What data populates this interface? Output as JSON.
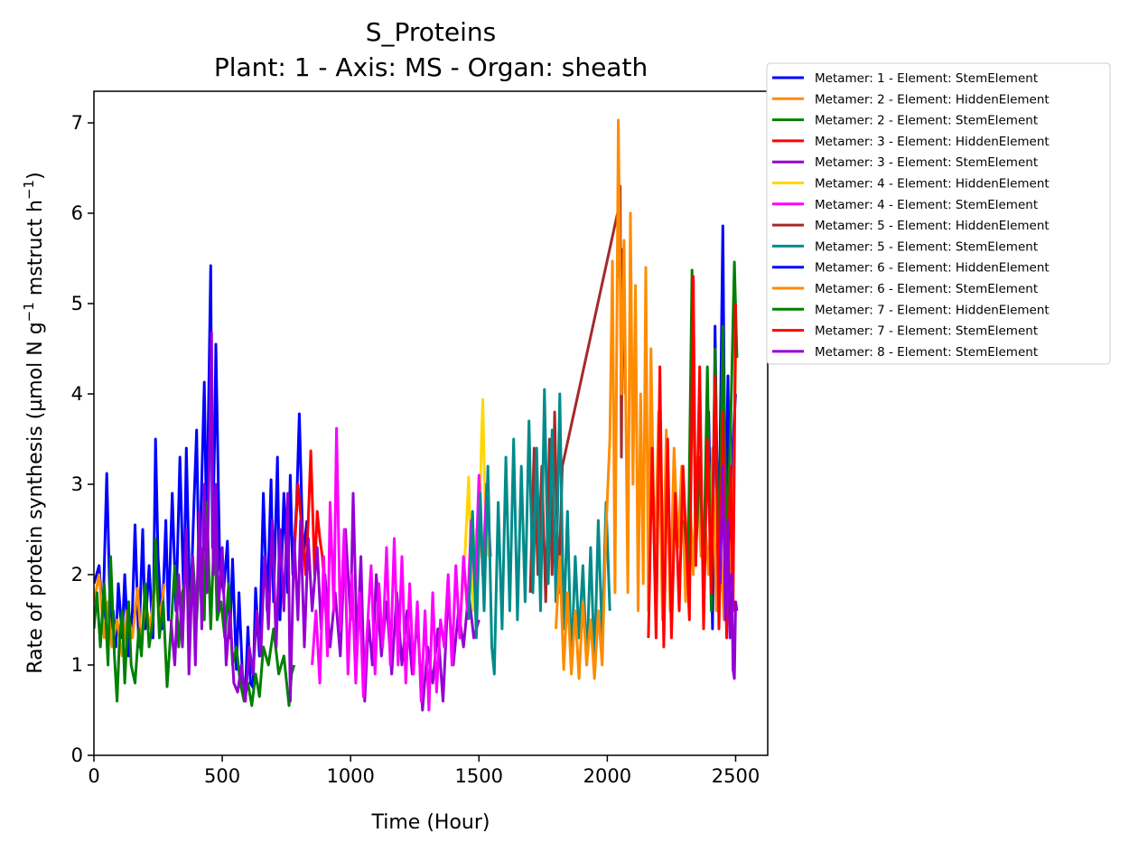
{
  "chart_data": {
    "type": "line",
    "title": "S_Proteins",
    "subtitle": "Plant: 1 - Axis: MS - Organ: sheath",
    "xlabel": "Time (Hour)",
    "ylabel_parts": [
      "Rate of protein synthesis (µmol N g",
      "−1",
      " mstruct h",
      "−1",
      ")"
    ],
    "xlim": [
      0,
      2625
    ],
    "ylim": [
      0,
      7.35
    ],
    "xticks": [
      0,
      500,
      1000,
      1500,
      2000,
      2500
    ],
    "yticks": [
      0,
      1,
      2,
      3,
      4,
      5,
      6,
      7
    ],
    "grid": false,
    "legend_position": "outside top-right",
    "series": [
      {
        "name": "Metamer: 1 - Element: StemElement",
        "color": "#0000ff",
        "x": [
          0,
          20,
          35,
          50,
          58,
          65,
          75,
          85,
          95,
          110,
          120,
          135,
          150,
          160,
          175,
          190,
          200,
          215,
          230,
          240,
          250,
          265,
          280,
          290,
          305,
          320,
          335,
          350,
          360,
          375,
          390,
          400,
          410,
          420,
          430,
          440,
          445,
          455,
          462,
          470,
          475,
          490,
          505,
          520,
          530,
          540,
          555,
          565,
          580,
          590,
          600,
          610,
          620,
          630,
          645,
          660,
          675,
          690,
          700,
          715,
          725,
          740,
          755,
          765,
          775,
          790,
          800,
          815,
          830
        ],
        "y": [
          1.9,
          2.1,
          1.5,
          3.12,
          2.2,
          1.4,
          1.6,
          1.2,
          1.9,
          1.3,
          2.0,
          1.1,
          1.6,
          2.55,
          1.2,
          2.5,
          1.4,
          2.1,
          1.3,
          3.5,
          2.2,
          1.4,
          2.6,
          1.5,
          2.9,
          1.6,
          3.3,
          1.7,
          3.4,
          1.5,
          2.8,
          3.6,
          1.9,
          3.05,
          4.13,
          2.3,
          3.6,
          5.42,
          2.3,
          3.5,
          4.55,
          2.1,
          1.8,
          2.37,
          1.3,
          2.17,
          0.95,
          1.8,
          0.8,
          0.72,
          1.42,
          0.8,
          0.75,
          1.85,
          1.1,
          2.9,
          1.6,
          3.05,
          1.7,
          3.3,
          1.5,
          2.9,
          1.8,
          3.1,
          2.0,
          2.8,
          3.78,
          2.2,
          2.6
        ]
      },
      {
        "name": "Metamer: 2 - Element: HiddenElement",
        "color": "#ff8c00",
        "x": [
          0,
          20,
          40,
          55,
          70,
          90,
          110,
          130,
          150,
          170,
          185,
          200,
          220,
          240,
          255,
          275
        ],
        "y": [
          1.7,
          2.0,
          1.3,
          1.7,
          1.2,
          1.5,
          1.1,
          1.6,
          1.3,
          1.85,
          1.2,
          1.7,
          1.4,
          2.0,
          1.5,
          1.9
        ]
      },
      {
        "name": "Metamer: 2 - Element: StemElement",
        "color": "#008000",
        "x": [
          0,
          12,
          25,
          40,
          55,
          65,
          80,
          90,
          100,
          110,
          120,
          135,
          145,
          160,
          175,
          185,
          200,
          215,
          230,
          240,
          255,
          270,
          285,
          300,
          315,
          330,
          345,
          360,
          375,
          385,
          400,
          415,
          430,
          440,
          455,
          470,
          480,
          495,
          510,
          525,
          540,
          555,
          570,
          585,
          600,
          615,
          630,
          645,
          660,
          680,
          700,
          720,
          740,
          760,
          770,
          780
        ],
        "y": [
          1.4,
          1.8,
          1.2,
          1.9,
          1.0,
          2.2,
          1.1,
          0.6,
          1.3,
          1.6,
          0.8,
          1.7,
          1.0,
          0.8,
          1.4,
          1.1,
          1.9,
          1.2,
          1.5,
          2.4,
          1.3,
          1.7,
          0.76,
          1.4,
          2.1,
          1.2,
          1.8,
          2.0,
          1.6,
          2.2,
          1.5,
          2.3,
          1.5,
          2.8,
          1.4,
          2.6,
          1.5,
          1.7,
          1.3,
          1.9,
          1.0,
          1.2,
          0.8,
          0.6,
          0.8,
          0.55,
          0.9,
          0.65,
          1.2,
          1.0,
          1.4,
          0.9,
          1.1,
          0.55,
          0.9,
          1.0
        ]
      },
      {
        "name": "Metamer: 3 - Element: HiddenElement",
        "color": "#ff0000",
        "x": [
          780,
          795,
          810,
          825,
          835,
          845,
          860,
          870,
          880,
          890,
          900
        ],
        "y": [
          2.2,
          3.0,
          2.5,
          2.0,
          2.6,
          3.37,
          2.0,
          2.7,
          2.4,
          2.2,
          1.8
        ]
      },
      {
        "name": "Metamer: 3 - Element: StemElement",
        "color": "#9400d3",
        "x": [
          300,
          315,
          330,
          345,
          360,
          370,
          385,
          395,
          410,
          420,
          430,
          440,
          450,
          458,
          465,
          475,
          485,
          500,
          515,
          530,
          545,
          560,
          575,
          590,
          605,
          620,
          635,
          650,
          665,
          680,
          695,
          710,
          725,
          740,
          755,
          765,
          780,
          795,
          805,
          820,
          835,
          850,
          870,
          885,
          900,
          920,
          940,
          960,
          980,
          1000,
          1010,
          1025,
          1040,
          1055,
          1070,
          1085,
          1100,
          1120,
          1140,
          1160,
          1180,
          1200,
          1220,
          1240,
          1260,
          1280,
          1300,
          1320,
          1340,
          1360,
          1380,
          1400,
          1420,
          1440,
          1460,
          1480,
          1500
        ],
        "y": [
          1.5,
          1.0,
          2.0,
          1.2,
          2.5,
          0.9,
          2.2,
          1.0,
          2.7,
          1.4,
          3.0,
          1.8,
          3.4,
          4.68,
          2.0,
          3.0,
          1.6,
          2.3,
          1.0,
          1.6,
          0.8,
          0.7,
          1.0,
          0.6,
          1.2,
          0.9,
          1.6,
          1.1,
          2.2,
          1.4,
          2.6,
          1.2,
          2.5,
          1.6,
          2.9,
          0.6,
          2.4,
          1.5,
          2.6,
          1.2,
          2.4,
          1.6,
          2.3,
          1.4,
          2.0,
          1.2,
          1.8,
          1.1,
          2.5,
          1.5,
          2.9,
          1.2,
          2.2,
          0.6,
          1.5,
          1.0,
          2.0,
          1.1,
          1.7,
          0.9,
          1.8,
          1.0,
          1.6,
          0.9,
          1.5,
          0.5,
          1.2,
          0.8,
          1.4,
          0.6,
          1.8,
          1.0,
          1.6,
          1.2,
          1.8,
          1.3,
          1.5
        ]
      },
      {
        "name": "Metamer: 4 - Element: HiddenElement",
        "color": "#ffd700",
        "x": [
          1430,
          1445,
          1460,
          1470,
          1480,
          1490,
          1500,
          1510,
          1515,
          1525,
          1535
        ],
        "y": [
          1.6,
          2.2,
          3.08,
          2.0,
          1.6,
          2.5,
          2.2,
          3.5,
          3.94,
          2.6,
          2.2
        ]
      },
      {
        "name": "Metamer: 4 - Element: StemElement",
        "color": "#ff00ff",
        "x": [
          850,
          865,
          880,
          895,
          910,
          920,
          935,
          945,
          960,
          975,
          990,
          1005,
          1020,
          1035,
          1050,
          1065,
          1080,
          1095,
          1110,
          1125,
          1140,
          1155,
          1170,
          1185,
          1200,
          1215,
          1230,
          1245,
          1260,
          1275,
          1290,
          1305,
          1320,
          1335,
          1350,
          1365,
          1380,
          1395,
          1410,
          1425,
          1440,
          1455,
          1470,
          1485,
          1500,
          1515,
          1530,
          1545
        ],
        "y": [
          1.0,
          1.6,
          0.8,
          2.2,
          1.1,
          2.8,
          1.6,
          3.62,
          1.4,
          2.5,
          0.9,
          2.0,
          0.8,
          1.8,
          0.65,
          1.4,
          2.1,
          0.9,
          1.9,
          1.2,
          2.3,
          1.0,
          2.4,
          1.0,
          2.2,
          0.8,
          1.9,
          0.9,
          1.7,
          0.6,
          1.6,
          0.5,
          1.8,
          0.7,
          1.5,
          1.2,
          2.0,
          1.0,
          2.1,
          1.3,
          2.2,
          1.6,
          2.6,
          1.8,
          3.1,
          2.0,
          3.0,
          2.2
        ]
      },
      {
        "name": "Metamer: 5 - Element: HiddenElement",
        "color": "#a52a2a",
        "x": [
          1700,
          1715,
          1730,
          1745,
          1760,
          1775,
          1785,
          1795,
          1810,
          1825,
          2040,
          2045,
          2050,
          2055,
          2060,
          2070
        ],
        "y": [
          1.8,
          3.4,
          2.0,
          3.2,
          1.7,
          3.5,
          2.0,
          3.8,
          1.8,
          3.2,
          6.0,
          5.3,
          6.3,
          3.3,
          5.6,
          4.0
        ]
      },
      {
        "name": "Metamer: 5 - Element: StemElement",
        "color": "#008b8b",
        "x": [
          1460,
          1475,
          1490,
          1505,
          1520,
          1535,
          1550,
          1560,
          1575,
          1590,
          1605,
          1620,
          1635,
          1650,
          1665,
          1680,
          1695,
          1710,
          1725,
          1740,
          1755,
          1770,
          1785,
          1800,
          1815,
          1830,
          1845,
          1860,
          1875,
          1890,
          1905,
          1920,
          1935,
          1950,
          1965,
          1980,
          1995,
          2010
        ],
        "y": [
          1.5,
          2.7,
          1.3,
          2.9,
          1.6,
          3.2,
          1.2,
          0.9,
          2.8,
          1.4,
          3.3,
          1.6,
          3.5,
          1.5,
          3.2,
          1.7,
          3.7,
          1.8,
          3.4,
          1.6,
          4.05,
          1.9,
          3.6,
          1.7,
          4.0,
          1.4,
          2.7,
          1.0,
          2.2,
          1.3,
          2.1,
          1.0,
          2.3,
          1.0,
          2.6,
          1.3,
          2.8,
          1.6
        ]
      },
      {
        "name": "Metamer: 6 - Element: HiddenElement",
        "color": "#0000ff",
        "x": [
          2380,
          2395,
          2410,
          2420,
          2432,
          2440,
          2450,
          2460,
          2470,
          2480,
          2490,
          2500
        ],
        "y": [
          2.5,
          3.8,
          1.4,
          4.75,
          2.0,
          3.5,
          5.86,
          2.5,
          4.2,
          1.9,
          3.5,
          4.0
        ]
      },
      {
        "name": "Metamer: 6 - Element: StemElement",
        "color": "#ff8c00",
        "x": [
          1800,
          1815,
          1830,
          1845,
          1860,
          1875,
          1890,
          1905,
          1920,
          1935,
          1950,
          1965,
          1980,
          1995,
          2010,
          2020,
          2030,
          2043,
          2055,
          2065,
          2080,
          2090,
          2100,
          2110,
          2120,
          2130,
          2140,
          2150,
          2160,
          2170,
          2185,
          2200,
          2215,
          2230,
          2245,
          2260,
          2275,
          2290,
          2305,
          2320,
          2335,
          2350,
          2365,
          2380,
          2395,
          2410,
          2425,
          2440,
          2455,
          2470,
          2485,
          2500
        ],
        "y": [
          1.4,
          2.2,
          0.95,
          1.8,
          0.9,
          1.6,
          0.85,
          1.7,
          1.0,
          1.5,
          0.85,
          1.6,
          1.0,
          2.5,
          3.5,
          5.47,
          1.8,
          7.03,
          4.0,
          5.7,
          1.8,
          6.0,
          3.0,
          5.2,
          1.6,
          4.0,
          1.9,
          5.4,
          1.6,
          4.5,
          2.0,
          3.8,
          1.5,
          3.6,
          1.6,
          3.4,
          2.3,
          3.2,
          1.7,
          3.0,
          2.0,
          3.3,
          2.2,
          2.6,
          2.0,
          3.4,
          1.6,
          2.4,
          1.5,
          2.6,
          1.9,
          4.4
        ]
      },
      {
        "name": "Metamer: 7 - Element: HiddenElement",
        "color": "#008000",
        "x": [
          2300,
          2315,
          2330,
          2345,
          2360,
          2375,
          2390,
          2405,
          2420,
          2435,
          2450,
          2465,
          2480,
          2495,
          2505
        ],
        "y": [
          2.6,
          2.1,
          5.37,
          2.2,
          3.3,
          2.0,
          4.3,
          1.6,
          4.5,
          2.0,
          4.75,
          2.3,
          3.6,
          5.46,
          4.4
        ]
      },
      {
        "name": "Metamer: 7 - Element: StemElement",
        "color": "#ff0000",
        "x": [
          2160,
          2175,
          2190,
          2205,
          2220,
          2235,
          2250,
          2265,
          2280,
          2295,
          2310,
          2320,
          2335,
          2345,
          2360,
          2375,
          2390,
          2405,
          2420,
          2435,
          2450,
          2465,
          2480,
          2490,
          2500
        ],
        "y": [
          1.3,
          3.4,
          1.3,
          4.3,
          1.2,
          3.5,
          1.3,
          2.9,
          1.6,
          3.2,
          2.2,
          1.5,
          5.3,
          2.1,
          4.3,
          1.4,
          3.5,
          1.8,
          4.2,
          1.4,
          3.8,
          1.3,
          3.2,
          1.6,
          5.0
        ]
      },
      {
        "name": "Metamer: 8 - Element: StemElement",
        "color": "#9400d3",
        "x": [
          2440,
          2450,
          2460,
          2470,
          2478,
          2485,
          2490,
          2495,
          2500,
          2505
        ],
        "y": [
          1.9,
          3.2,
          1.5,
          2.6,
          1.3,
          2.0,
          0.95,
          0.85,
          1.7,
          1.6
        ]
      }
    ]
  }
}
